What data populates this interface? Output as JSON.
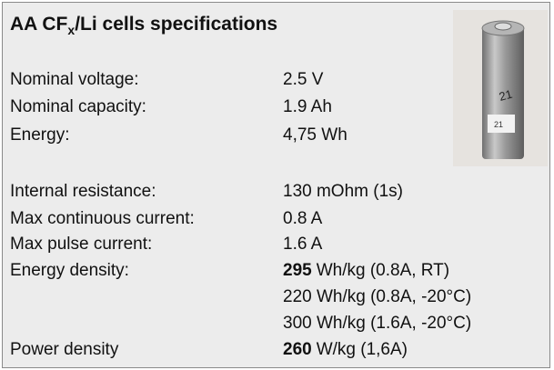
{
  "title": {
    "main": "AA CF",
    "subscript": "x",
    "rest": "/Li cells specifications"
  },
  "photo_labels": [
    "21",
    "21"
  ],
  "rows": [
    {
      "label": "Nominal voltage:",
      "value": "2.5 V"
    },
    {
      "label": "Nominal capacity:",
      "value": "1.9 Ah"
    },
    {
      "label": "Energy:",
      "value": "4,75 Wh"
    },
    {
      "label": "Internal resistance:",
      "value": "130 mOhm (1s)"
    },
    {
      "label": "Max continuous current:",
      "value": "0.8 A"
    },
    {
      "label": "Max pulse current:",
      "value": "1.6 A"
    },
    {
      "label": "Energy density:",
      "value_bold": "295",
      "value": "Wh/kg (0.8A, RT)"
    },
    {
      "value": "220 Wh/kg (0.8A, -20°C)"
    },
    {
      "value": "300 Wh/kg (1.6A, -20°C)"
    },
    {
      "label": "Power density",
      "value_bold": "260",
      "value": "W/kg (1,6A)"
    }
  ]
}
